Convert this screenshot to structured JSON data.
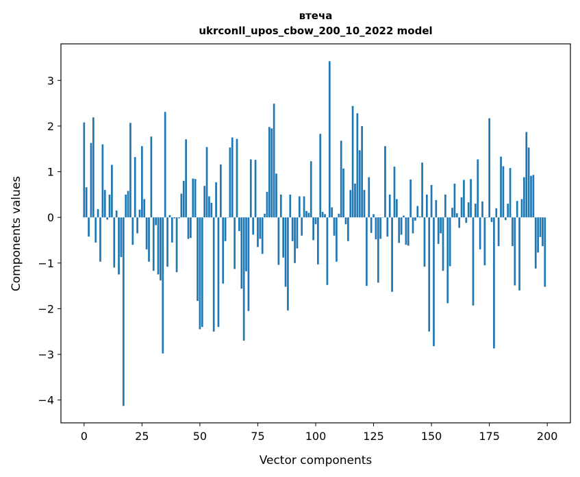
{
  "chart_data": {
    "type": "bar",
    "title": "втеча",
    "subtitle": "ukrconll_upos_cbow_200_10_2022 model",
    "xlabel": "Vector components",
    "ylabel": "Components values",
    "xlim": [
      -10,
      210
    ],
    "ylim": [
      -4.5,
      3.8
    ],
    "xticks": [
      0,
      25,
      50,
      75,
      100,
      125,
      150,
      175,
      200
    ],
    "yticks": [
      -4,
      -3,
      -2,
      -1,
      0,
      1,
      2,
      3
    ],
    "grid": false,
    "bar_color": "#1f77b4",
    "x": [
      0,
      1,
      2,
      3,
      4,
      5,
      6,
      7,
      8,
      9,
      10,
      11,
      12,
      13,
      14,
      15,
      16,
      17,
      18,
      19,
      20,
      21,
      22,
      23,
      24,
      25,
      26,
      27,
      28,
      29,
      30,
      31,
      32,
      33,
      34,
      35,
      36,
      37,
      38,
      39,
      40,
      41,
      42,
      43,
      44,
      45,
      46,
      47,
      48,
      49,
      50,
      51,
      52,
      53,
      54,
      55,
      56,
      57,
      58,
      59,
      60,
      61,
      62,
      63,
      64,
      65,
      66,
      67,
      68,
      69,
      70,
      71,
      72,
      73,
      74,
      75,
      76,
      77,
      78,
      79,
      80,
      81,
      82,
      83,
      84,
      85,
      86,
      87,
      88,
      89,
      90,
      91,
      92,
      93,
      94,
      95,
      96,
      97,
      98,
      99,
      100,
      101,
      102,
      103,
      104,
      105,
      106,
      107,
      108,
      109,
      110,
      111,
      112,
      113,
      114,
      115,
      116,
      117,
      118,
      119,
      120,
      121,
      122,
      123,
      124,
      125,
      126,
      127,
      128,
      129,
      130,
      131,
      132,
      133,
      134,
      135,
      136,
      137,
      138,
      139,
      140,
      141,
      142,
      143,
      144,
      145,
      146,
      147,
      148,
      149,
      150,
      151,
      152,
      153,
      154,
      155,
      156,
      157,
      158,
      159,
      160,
      161,
      162,
      163,
      164,
      165,
      166,
      167,
      168,
      169,
      170,
      171,
      172,
      173,
      174,
      175,
      176,
      177,
      178,
      179,
      180,
      181,
      182,
      183,
      184,
      185,
      186,
      187,
      188,
      189,
      190,
      191,
      192,
      193,
      194,
      195,
      196,
      197,
      198,
      199
    ],
    "values": [
      2.08,
      0.66,
      -0.42,
      1.63,
      2.19,
      -0.55,
      0.18,
      -0.97,
      1.6,
      0.6,
      -0.05,
      0.5,
      1.15,
      -1.1,
      0.15,
      -1.25,
      -0.87,
      -4.13,
      0.5,
      0.58,
      2.07,
      -0.6,
      1.32,
      -0.35,
      0.17,
      1.56,
      0.4,
      -0.7,
      -0.97,
      1.77,
      -1.17,
      -0.17,
      -1.25,
      -1.38,
      -2.98,
      2.31,
      -1.08,
      0.05,
      -0.55,
      -0.02,
      -1.2,
      -0.02,
      0.52,
      0.8,
      1.71,
      -0.47,
      -0.45,
      0.85,
      0.84,
      -1.83,
      -2.45,
      -2.4,
      0.69,
      1.54,
      0.46,
      0.32,
      -2.5,
      0.77,
      -2.4,
      1.16,
      -1.45,
      -0.52,
      0.0,
      1.53,
      1.75,
      -1.13,
      1.72,
      -0.3,
      -1.56,
      -2.7,
      -1.18,
      -2.05,
      1.27,
      -0.38,
      1.26,
      -0.65,
      -0.47,
      -0.8,
      0.08,
      0.56,
      1.98,
      1.95,
      2.49,
      0.96,
      -1.04,
      0.5,
      -0.88,
      -1.52,
      -2.04,
      0.5,
      -0.52,
      -1.0,
      -0.68,
      0.46,
      -0.4,
      0.46,
      0.14,
      0.1,
      1.23,
      -0.5,
      -0.15,
      -1.03,
      1.83,
      0.12,
      0.07,
      -1.48,
      3.42,
      0.22,
      -0.4,
      -0.97,
      0.08,
      1.68,
      1.07,
      -0.15,
      -0.52,
      0.6,
      2.44,
      0.74,
      2.28,
      1.47,
      2.0,
      0.6,
      -1.5,
      0.88,
      -0.34,
      0.07,
      -0.48,
      -1.43,
      -0.47,
      0.0,
      1.56,
      -0.42,
      0.5,
      -1.63,
      1.11,
      0.4,
      -0.56,
      -0.38,
      0.04,
      -0.6,
      -0.62,
      0.83,
      -0.35,
      -0.07,
      0.25,
      0.02,
      1.2,
      -1.08,
      0.5,
      -2.5,
      0.71,
      -2.82,
      0.38,
      -0.58,
      -0.35,
      -1.17,
      0.5,
      -1.88,
      -1.07,
      0.21,
      0.74,
      0.09,
      -0.23,
      0.44,
      0.82,
      -0.12,
      0.33,
      0.84,
      -1.93,
      0.3,
      1.27,
      -0.7,
      0.35,
      -1.05,
      0.0,
      2.17,
      -0.1,
      -2.87,
      0.2,
      -0.63,
      1.33,
      1.12,
      -0.06,
      0.3,
      1.08,
      -0.63,
      -1.49,
      0.36,
      -1.6,
      0.4,
      0.88,
      1.87,
      1.53,
      0.91,
      0.93,
      -1.12,
      -0.77,
      -0.43,
      -0.63,
      -1.52
    ]
  }
}
